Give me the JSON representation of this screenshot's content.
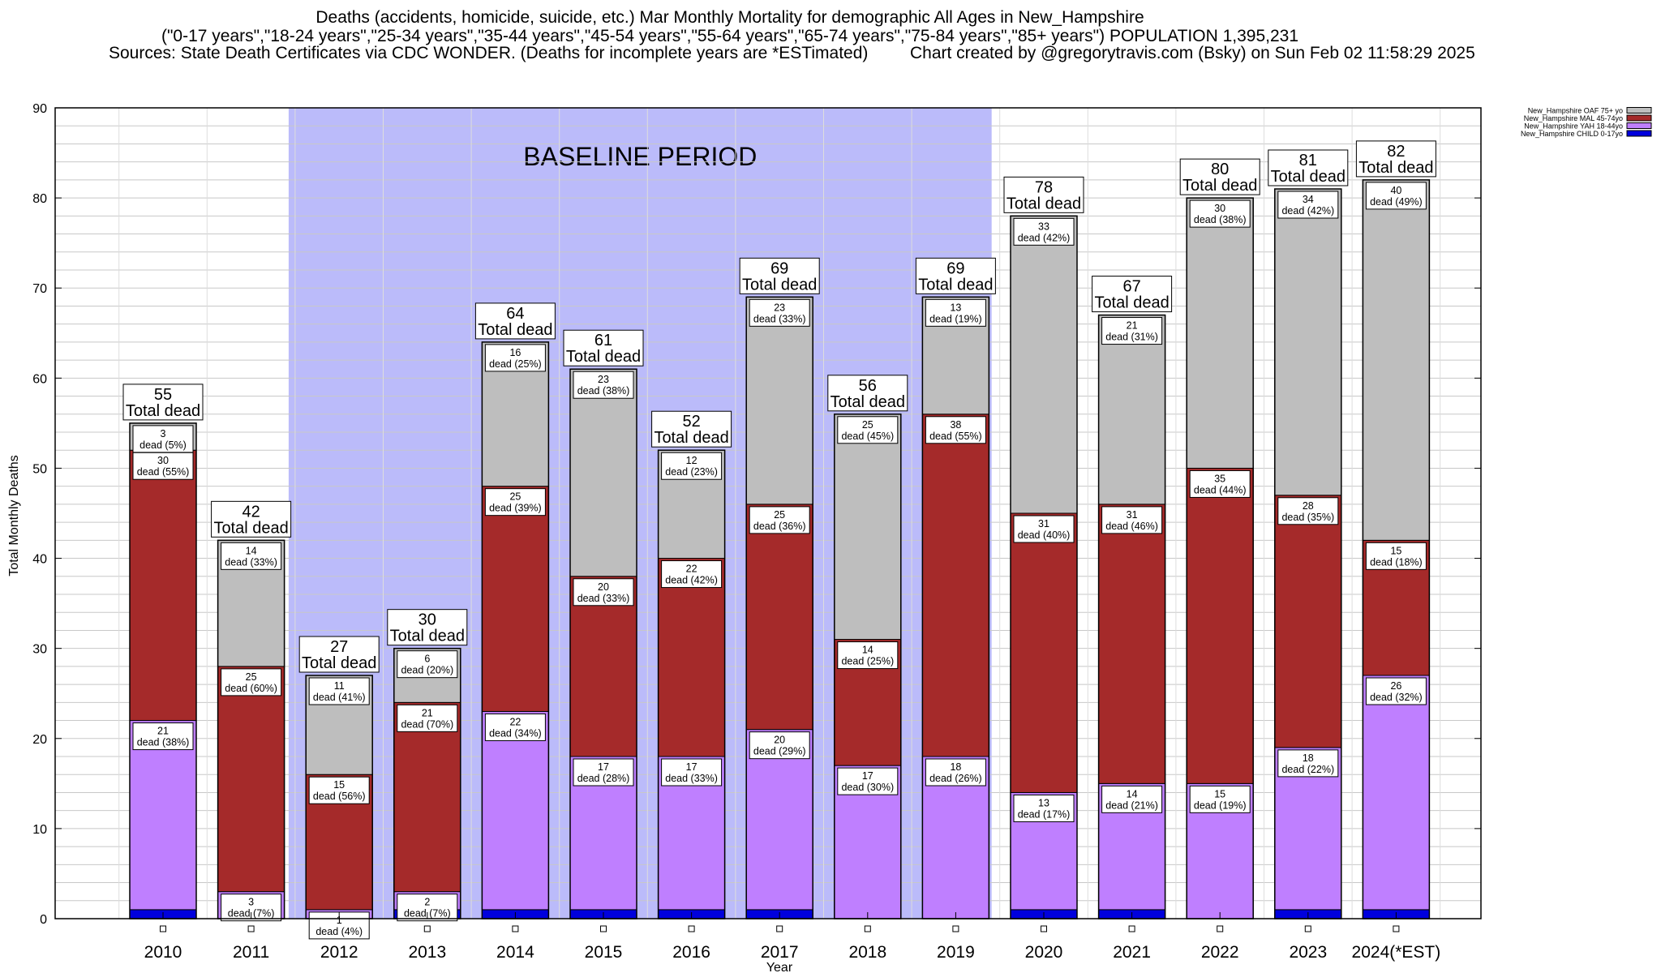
{
  "header": {
    "line1": "Deaths (accidents, homicide, suicide, etc.) Mar Monthly Mortality for demographic All Ages in New_Hampshire",
    "line2": "(\"0-17 years\",\"18-24 years\",\"25-34 years\",\"35-44 years\",\"45-54 years\",\"55-64 years\",\"65-74 years\",\"75-84 years\",\"85+ years\") POPULATION 1,395,231",
    "line3_left": "Sources: State Death Certificates via CDC WONDER. (Deaths for incomplete years are *ESTimated)",
    "line3_right": "Chart created by @gregorytravis.com (Bsky) on Sun Feb 02 11:58:29 2025"
  },
  "chart_data": {
    "type": "bar",
    "stacked": true,
    "xlabel": "Year",
    "ylabel": "Total Monthly Deaths",
    "ylim": [
      0,
      90
    ],
    "yticks": [
      0,
      10,
      20,
      30,
      40,
      50,
      60,
      70,
      80,
      90
    ],
    "grid": "horizontal minor lines every 2",
    "legend_position": "top-right",
    "baseline_label": "BASELINE PERIOD",
    "baseline_range": [
      "2012",
      "2019"
    ],
    "total_suffix": "Total dead",
    "categories": [
      "2010",
      "2011",
      "2012",
      "2013",
      "2014",
      "2015",
      "2016",
      "2017",
      "2018",
      "2019",
      "2020",
      "2021",
      "2022",
      "2023",
      "2024(*EST)"
    ],
    "totals": [
      55,
      42,
      27,
      30,
      64,
      61,
      52,
      69,
      56,
      69,
      78,
      67,
      80,
      81,
      82
    ],
    "series": [
      {
        "name": "New_Hampshire CHILD 0-17yo",
        "color": "#0000dd",
        "values": [
          1,
          0,
          0,
          1,
          1,
          1,
          1,
          1,
          0,
          0,
          1,
          1,
          0,
          1,
          1
        ]
      },
      {
        "name": "New_Hampshire YAH 18-44yo",
        "color": "#bf7fff",
        "values": [
          21,
          3,
          1,
          2,
          22,
          17,
          17,
          20,
          17,
          18,
          13,
          14,
          15,
          18,
          26
        ],
        "labels": [
          "21\ndead (38%)",
          "3\ndead (7%)",
          "1\ndead (4%)",
          "2\ndead (7%)",
          "22\ndead (34%)",
          "17\ndead (28%)",
          "17\ndead (33%)",
          "20\ndead (29%)",
          "17\ndead (30%)",
          "18\ndead (26%)",
          "13\ndead (17%)",
          "14\ndead (21%)",
          "15\ndead (19%)",
          "18\ndead (22%)",
          "26\ndead (32%)"
        ]
      },
      {
        "name": "New_Hampshire MAL 45-74yo",
        "color": "#a52a2a",
        "values": [
          30,
          25,
          15,
          21,
          25,
          20,
          22,
          25,
          14,
          38,
          31,
          31,
          35,
          28,
          15
        ],
        "labels": [
          "30\ndead (55%)",
          "25\ndead (60%)",
          "15\ndead (56%)",
          "21\ndead (70%)",
          "25\ndead (39%)",
          "20\ndead (33%)",
          "22\ndead (42%)",
          "25\ndead (36%)",
          "14\ndead (25%)",
          "38\ndead (55%)",
          "31\ndead (40%)",
          "31\ndead (46%)",
          "35\ndead (44%)",
          "28\ndead (35%)",
          "15\ndead (18%)"
        ]
      },
      {
        "name": "New_Hampshire OAF 75+ yo",
        "color": "#bebebe",
        "values": [
          3,
          14,
          11,
          6,
          16,
          23,
          12,
          23,
          25,
          13,
          33,
          21,
          30,
          34,
          40
        ],
        "labels": [
          "3\ndead (5%)",
          "14\ndead (33%)",
          "11\ndead (41%)",
          "6\ndead (20%)",
          "16\ndead (25%)",
          "23\ndead (38%)",
          "12\ndead (23%)",
          "23\ndead (33%)",
          "25\ndead (45%)",
          "13\ndead (19%)",
          "33\ndead (42%)",
          "21\ndead (31%)",
          "30\ndead (38%)",
          "34\ndead (42%)",
          "40\ndead (49%)"
        ]
      }
    ]
  }
}
